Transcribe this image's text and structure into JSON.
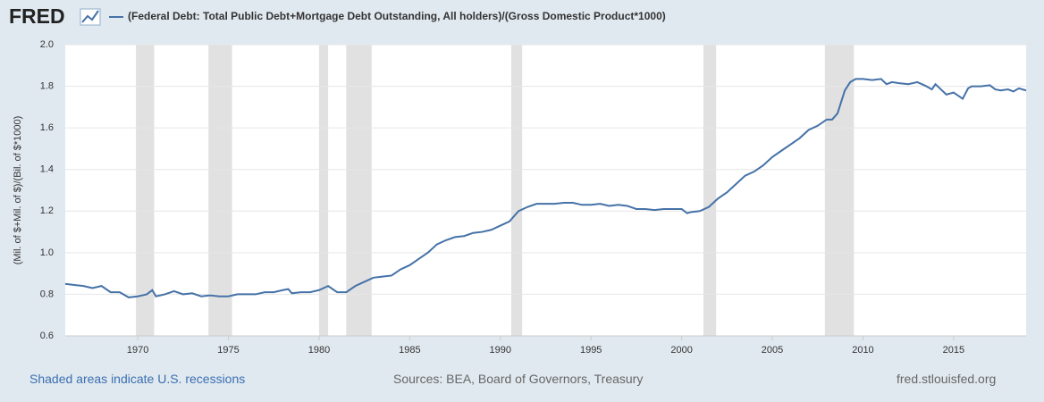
{
  "chart_data": {
    "type": "line",
    "logo": "FRED",
    "y_label": "(Mil. of $+Mil. of $)/(Bil. of $*1000)",
    "footer_left": "Shaded areas indicate U.S. recessions",
    "footer_center": "Sources: BEA, Board of Governors, Treasury",
    "footer_right": "fred.stlouisfed.org",
    "xlim": [
      1966,
      2019
    ],
    "xticks": [
      1970,
      1975,
      1980,
      1985,
      1990,
      1995,
      2000,
      2005,
      2010,
      2015
    ],
    "ylim": [
      0.6,
      2.0
    ],
    "yticks": [
      0.6,
      0.8,
      {
        "value": 1,
        "label": "1.0"
      },
      1.2,
      1.4,
      1.6,
      1.8,
      {
        "value": 2,
        "label": "2.0"
      }
    ],
    "grid": true,
    "recessions": [
      [
        1969.9,
        1970.9
      ],
      [
        1973.9,
        1975.2
      ],
      [
        1980.0,
        1980.5
      ],
      [
        1981.5,
        1982.9
      ],
      [
        1990.6,
        1991.2
      ],
      [
        2001.2,
        2001.9
      ],
      [
        2007.9,
        2009.5
      ]
    ],
    "x": [
      1966,
      1966.5,
      1967,
      1967.5,
      1968,
      1968.5,
      1969,
      1969.5,
      1970,
      1970.5,
      1970.8,
      1971,
      1971.5,
      1972,
      1972.5,
      1973,
      1973.5,
      1974,
      1974.5,
      1975,
      1975.5,
      1976,
      1976.5,
      1977,
      1977.5,
      1978,
      1978.3,
      1978.5,
      1979,
      1979.5,
      1980,
      1980.5,
      1981,
      1981.5,
      1982,
      1982.5,
      1983,
      1983.5,
      1984,
      1984.5,
      1985,
      1985.5,
      1986,
      1986.5,
      1987,
      1987.5,
      1988,
      1988.5,
      1989,
      1989.5,
      1990,
      1990.5,
      1991,
      1991.5,
      1992,
      1993,
      1993.5,
      1994,
      1994.5,
      1995,
      1995.5,
      1996,
      1996.5,
      1997,
      1997.5,
      1998,
      1998.5,
      1999,
      1999.5,
      2000,
      2000.3,
      2000.5,
      2001,
      2001.5,
      2002,
      2002.5,
      2003,
      2003.5,
      2004,
      2004.5,
      2005,
      2005.5,
      2006,
      2006.5,
      2007,
      2007.5,
      2008,
      2008.3,
      2008.6,
      2009,
      2009.3,
      2009.6,
      2010,
      2010.5,
      2011,
      2011.3,
      2011.6,
      2012,
      2012.5,
      2013,
      2013.5,
      2013.8,
      2014,
      2014.3,
      2014.6,
      2015,
      2015.5,
      2015.8,
      2016,
      2016.5,
      2017,
      2017.3,
      2017.6,
      2018,
      2018.3,
      2018.6,
      2019
    ],
    "series": [
      {
        "name": "(Federal Debt: Total Public Debt+Mortgage Debt Outstanding, All holders)/(Gross Domestic Product*1000)",
        "color": "#4572a7",
        "values": [
          0.85,
          0.845,
          0.84,
          0.83,
          0.84,
          0.81,
          0.81,
          0.785,
          0.79,
          0.8,
          0.82,
          0.79,
          0.8,
          0.815,
          0.8,
          0.805,
          0.79,
          0.795,
          0.79,
          0.79,
          0.8,
          0.8,
          0.8,
          0.81,
          0.81,
          0.82,
          0.825,
          0.805,
          0.81,
          0.81,
          0.82,
          0.84,
          0.81,
          0.81,
          0.84,
          0.86,
          0.88,
          0.885,
          0.89,
          0.92,
          0.94,
          0.97,
          1.0,
          1.04,
          1.06,
          1.075,
          1.08,
          1.095,
          1.1,
          1.11,
          1.13,
          1.15,
          1.2,
          1.22,
          1.235,
          1.235,
          1.24,
          1.24,
          1.23,
          1.23,
          1.235,
          1.225,
          1.23,
          1.225,
          1.21,
          1.21,
          1.205,
          1.21,
          1.21,
          1.21,
          1.19,
          1.195,
          1.2,
          1.22,
          1.26,
          1.29,
          1.33,
          1.37,
          1.39,
          1.42,
          1.46,
          1.49,
          1.52,
          1.55,
          1.59,
          1.61,
          1.64,
          1.64,
          1.67,
          1.78,
          1.82,
          1.835,
          1.835,
          1.83,
          1.835,
          1.81,
          1.82,
          1.815,
          1.81,
          1.82,
          1.8,
          1.785,
          1.81,
          1.785,
          1.76,
          1.77,
          1.74,
          1.79,
          1.8,
          1.8,
          1.805,
          1.785,
          1.78,
          1.785,
          1.775,
          1.79,
          1.78
        ]
      }
    ]
  }
}
